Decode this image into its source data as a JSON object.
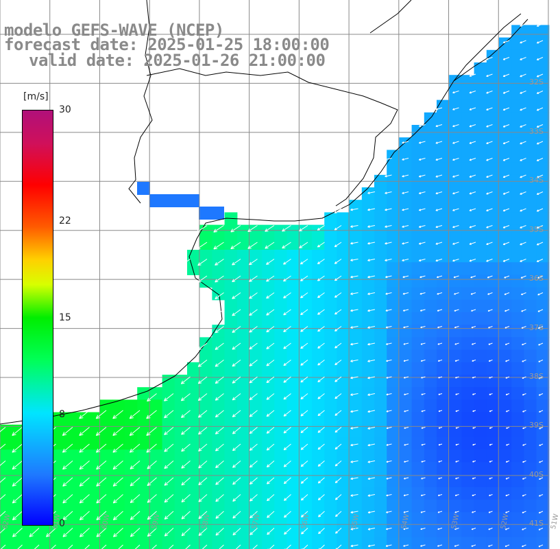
{
  "title": {
    "line1": "modelo GEFS-WAVE (NCEP)",
    "line2": "forecast date: 2025-01-25 18:00:00",
    "line3": "valid date: 2025-01-26 21:00:00"
  },
  "colorbar": {
    "unit": "[m/s]",
    "min": 0,
    "max": 30,
    "ticks": [
      {
        "value": 30,
        "label": "30"
      },
      {
        "value": 22,
        "label": "22"
      },
      {
        "value": 15,
        "label": "15"
      },
      {
        "value": 8,
        "label": "8"
      },
      {
        "value": 0,
        "label": "0"
      }
    ],
    "colors": [
      "#0000ff",
      "#1e78ff",
      "#00e5ff",
      "#00ff55",
      "#00ee00",
      "#d8ff00",
      "#ffd000",
      "#ff5a00",
      "#ff0000",
      "#d0105a",
      "#b0107a"
    ]
  },
  "map": {
    "lon_range": [
      -62,
      -51
    ],
    "lat_range": [
      -41.5,
      -30.3
    ],
    "lat_labels": [
      "32S",
      "33S",
      "34S",
      "35S",
      "36S",
      "37S",
      "38S",
      "39S",
      "40S",
      "41S"
    ],
    "lon_labels": [
      "62W",
      "61W",
      "60W",
      "59W",
      "58W",
      "57W",
      "56W",
      "55W",
      "54W",
      "53W",
      "52W",
      "51W"
    ],
    "land_color": "#ffffff",
    "grid_color": "#888888",
    "coast_color": "#000000",
    "arrow_color": "#ffffff"
  }
}
